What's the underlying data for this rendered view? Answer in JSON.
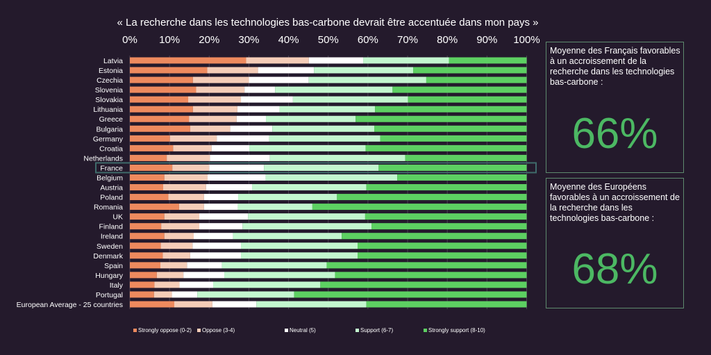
{
  "chart_data": {
    "type": "bar",
    "orientation": "horizontal",
    "stacked": true,
    "title": "« La recherche dans les technologies bas-carbone devrait être accentuée dans mon pays »",
    "xlim": [
      0,
      100
    ],
    "x_ticks": [
      "0%",
      "10%",
      "20%",
      "30%",
      "40%",
      "50%",
      "60%",
      "70%",
      "80%",
      "90%",
      "100%"
    ],
    "grid": true,
    "legend_position": "bottom",
    "highlighted_category": "France",
    "highlight_color": "#3f6b6b",
    "categories": [
      "Latvia",
      "Estonia",
      "Czechia",
      "Slovenia",
      "Slovakia",
      "Lithuania",
      "Greece",
      "Bulgaria",
      "Germany",
      "Croatia",
      "Netherlands",
      "France",
      "Belgium",
      "Austria",
      "Poland",
      "Romania",
      "UK",
      "Finland",
      "Ireland",
      "Sweden",
      "Denmark",
      "Spain",
      "Hungary",
      "Italy",
      "Portugal",
      "European Average - 25 countries"
    ],
    "series": [
      {
        "name": "Strongly oppose (0-2)",
        "color": "#ee8a5e",
        "values": [
          29.3,
          19.5,
          15.9,
          16.7,
          14.7,
          15.9,
          14.9,
          15.2,
          10.1,
          10.9,
          9.3,
          10.7,
          8.7,
          8.4,
          9.7,
          12.4,
          8.7,
          7.9,
          8.7,
          7.8,
          8.3,
          7.7,
          6.8,
          6.2,
          6.1,
          11.2
        ]
      },
      {
        "name": "Oppose (3-4)",
        "color": "#f5cdb8",
        "values": [
          15.8,
          12.8,
          14.1,
          12.2,
          13.3,
          11.2,
          12.0,
          10.1,
          11.8,
          9.7,
          10.9,
          9.3,
          10.9,
          10.8,
          9.0,
          6.3,
          8.8,
          9.6,
          7.4,
          8.0,
          6.9,
          6.7,
          6.7,
          6.3,
          4.5,
          9.6
        ]
      },
      {
        "name": "Neutral (5)",
        "color": "#ffffff",
        "values": [
          13.7,
          14.1,
          15.1,
          7.7,
          13.1,
          10.6,
          7.4,
          10.6,
          13.2,
          9.5,
          15.1,
          13.8,
          14.6,
          11.6,
          8.6,
          8.5,
          12.3,
          10.9,
          9.9,
          12.2,
          12.8,
          8.8,
          10.3,
          8.5,
          6.4,
          11.1
        ]
      },
      {
        "name": "Support (6-7)",
        "color": "#c3f7cf",
        "values": [
          21.6,
          25.0,
          29.6,
          29.6,
          29.0,
          24.1,
          22.6,
          25.7,
          28.0,
          29.3,
          34.1,
          28.9,
          33.2,
          28.8,
          24.9,
          18.8,
          29.5,
          32.5,
          27.4,
          29.4,
          29.4,
          26.4,
          27.9,
          27.0,
          24.4,
          27.7
        ]
      },
      {
        "name": "Strongly support (8-10)",
        "color": "#5dd062",
        "values": [
          19.6,
          28.6,
          25.3,
          33.8,
          29.9,
          38.2,
          43.1,
          38.4,
          36.9,
          40.6,
          30.6,
          37.3,
          32.6,
          40.4,
          47.8,
          54.0,
          40.7,
          39.1,
          46.6,
          42.6,
          42.6,
          50.4,
          48.3,
          52.0,
          58.6,
          40.4
        ]
      }
    ]
  },
  "panels": {
    "france": {
      "text": "Moyenne des Français favorables à un accroissement de la recherche dans les technologies bas-carbone :",
      "value": "66%"
    },
    "europe": {
      "text": "Moyenne des Européens favorables à un accroissement de la recherche dans les technologies bas-carbone :",
      "value": "68%"
    }
  },
  "colors": {
    "background": "#241a2c",
    "accent_green": "#4cb863",
    "panel_border": "#5e8a6e"
  }
}
